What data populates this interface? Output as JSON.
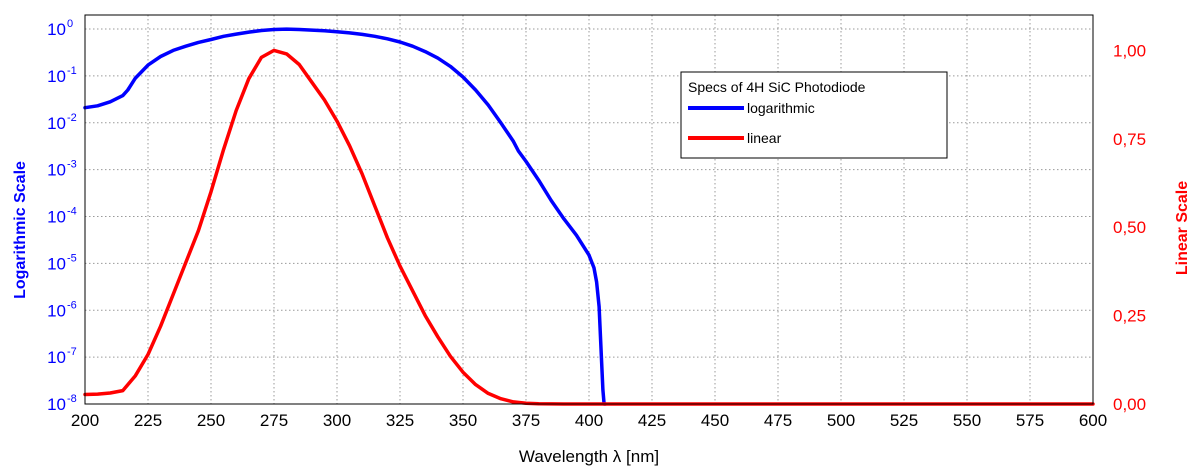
{
  "chart_data": {
    "type": "line",
    "title": "",
    "xlabel": "Wavelength λ [nm]",
    "ylabel_left": "Logarithmic Scale",
    "ylabel_right": "Linear Scale",
    "xlim": [
      200,
      600
    ],
    "x_ticks": [
      "200",
      "225",
      "250",
      "275",
      "300",
      "325",
      "350",
      "375",
      "400",
      "425",
      "450",
      "475",
      "500",
      "525",
      "550",
      "575",
      "600"
    ],
    "ylim_left_log10": [
      -8,
      0.3
    ],
    "y_left_ticks": [
      {
        "base": "10",
        "exp": "0",
        "value": 1
      },
      {
        "base": "10",
        "exp": "-1",
        "value": 0.1
      },
      {
        "base": "10",
        "exp": "-2",
        "value": 0.01
      },
      {
        "base": "10",
        "exp": "-3",
        "value": 0.001
      },
      {
        "base": "10",
        "exp": "-4",
        "value": 0.0001
      },
      {
        "base": "10",
        "exp": "-5",
        "value": 1e-05
      },
      {
        "base": "10",
        "exp": "-6",
        "value": 1e-06
      },
      {
        "base": "10",
        "exp": "-7",
        "value": 1e-07
      },
      {
        "base": "10",
        "exp": "-8",
        "value": 1e-08
      }
    ],
    "ylim_right": [
      0,
      1.1
    ],
    "y_right_ticks": [
      "0,00",
      "0,25",
      "0,50",
      "0,75",
      "1,00"
    ],
    "grid": true,
    "legend": {
      "title": "Specs of 4H SiC Photodiode",
      "placement": "top-right"
    },
    "series": [
      {
        "name": "logarithmic",
        "color": "#0000ff",
        "axis": "left",
        "x": [
          200,
          205,
          210,
          215,
          217,
          220,
          225,
          230,
          235,
          240,
          245,
          250,
          255,
          260,
          265,
          270,
          275,
          280,
          285,
          290,
          295,
          300,
          305,
          310,
          315,
          320,
          325,
          330,
          335,
          340,
          345,
          350,
          355,
          360,
          365,
          370,
          372,
          375,
          380,
          385,
          390,
          395,
          400,
          402,
          403,
          404,
          405,
          405.5,
          406,
          406.5
        ],
        "y": [
          0.021,
          0.023,
          0.028,
          0.038,
          0.05,
          0.09,
          0.17,
          0.26,
          0.35,
          0.43,
          0.52,
          0.6,
          0.7,
          0.78,
          0.86,
          0.93,
          0.98,
          1.0,
          0.98,
          0.95,
          0.92,
          0.88,
          0.83,
          0.77,
          0.7,
          0.62,
          0.53,
          0.43,
          0.33,
          0.24,
          0.16,
          0.095,
          0.05,
          0.024,
          0.01,
          0.004,
          0.0025,
          0.0015,
          0.0006,
          0.00022,
          9e-05,
          4e-05,
          1.5e-05,
          8e-06,
          4e-06,
          1.2e-06,
          8e-08,
          2e-08,
          1e-08,
          1e-08
        ]
      },
      {
        "name": "linear",
        "color": "#ff0000",
        "axis": "right",
        "x": [
          200,
          205,
          210,
          215,
          220,
          225,
          230,
          235,
          240,
          245,
          250,
          255,
          260,
          265,
          270,
          275,
          280,
          285,
          290,
          295,
          300,
          305,
          310,
          315,
          320,
          325,
          330,
          335,
          340,
          345,
          350,
          355,
          360,
          365,
          370,
          375,
          380,
          385,
          390,
          400,
          450,
          500,
          550,
          600
        ],
        "y": [
          0.027,
          0.028,
          0.031,
          0.038,
          0.08,
          0.14,
          0.22,
          0.31,
          0.4,
          0.49,
          0.6,
          0.72,
          0.83,
          0.92,
          0.98,
          1.0,
          0.99,
          0.96,
          0.91,
          0.86,
          0.8,
          0.73,
          0.65,
          0.56,
          0.47,
          0.39,
          0.32,
          0.25,
          0.19,
          0.135,
          0.09,
          0.055,
          0.03,
          0.015,
          0.006,
          0.002,
          0.0005,
          0.0002,
          0.0001,
          0.0,
          0.0,
          0.0,
          0.0,
          0.0
        ]
      }
    ]
  }
}
